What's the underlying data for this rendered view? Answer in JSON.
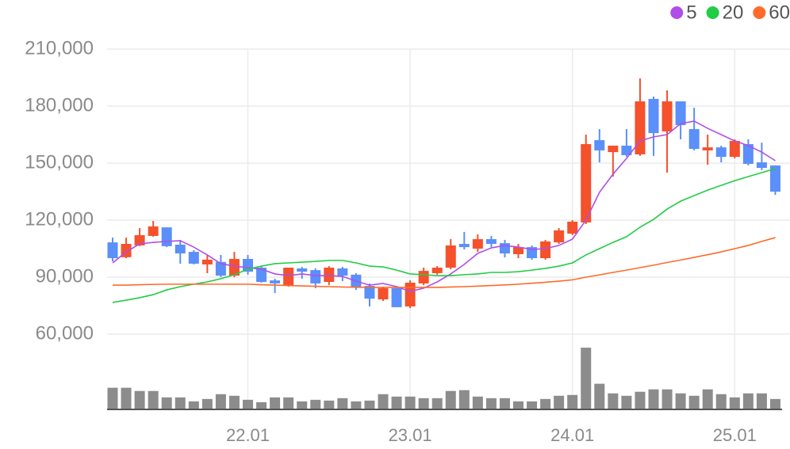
{
  "chart_data": {
    "type": "candlestick",
    "categories": [
      null,
      null,
      null,
      null,
      null,
      null,
      null,
      null,
      null,
      null,
      "22.01",
      null,
      null,
      null,
      null,
      null,
      null,
      null,
      null,
      null,
      null,
      null,
      "23.01",
      null,
      null,
      null,
      null,
      null,
      null,
      null,
      null,
      null,
      null,
      null,
      "24.01",
      null,
      null,
      null,
      null,
      null,
      null,
      null,
      null,
      null,
      null,
      null,
      "25.01",
      null,
      null,
      null
    ],
    "open": [
      108300,
      100500,
      106700,
      111700,
      116200,
      107100,
      103300,
      96700,
      98000,
      90800,
      99600,
      95000,
      88300,
      85800,
      94600,
      93700,
      87500,
      94600,
      91300,
      85400,
      78300,
      84200,
      74600,
      86700,
      92100,
      95000,
      107500,
      105000,
      110000,
      107900,
      102100,
      105800,
      100000,
      108300,
      112900,
      118800,
      162100,
      155800,
      159200,
      154600,
      183800,
      166700,
      182500,
      167900,
      156700,
      158300,
      153300,
      160000,
      150400,
      148800
    ],
    "high": [
      110800,
      110800,
      115800,
      119600,
      116200,
      109600,
      104200,
      101700,
      101700,
      103300,
      101700,
      95800,
      89200,
      95000,
      95400,
      94600,
      95800,
      95400,
      92100,
      86700,
      85000,
      84600,
      88300,
      95000,
      95800,
      110000,
      113800,
      112500,
      111700,
      109600,
      107500,
      106700,
      109600,
      115800,
      120000,
      165000,
      167900,
      159200,
      167900,
      194600,
      185000,
      188300,
      182500,
      179200,
      165000,
      159200,
      162500,
      162500,
      160800,
      148800
    ],
    "low": [
      98300,
      100000,
      106300,
      111300,
      105800,
      97100,
      96700,
      92100,
      90000,
      90000,
      91300,
      87100,
      81700,
      85000,
      89200,
      84200,
      85800,
      87900,
      83300,
      74600,
      77500,
      74200,
      73700,
      85800,
      91300,
      94200,
      104600,
      103300,
      105800,
      100400,
      100000,
      99200,
      99200,
      107500,
      112100,
      117900,
      150400,
      142900,
      153300,
      153800,
      153800,
      145000,
      162500,
      156700,
      149200,
      150400,
      152500,
      148800,
      146300,
      133300
    ],
    "close": [
      100000,
      107500,
      112100,
      116700,
      106300,
      102500,
      97100,
      99200,
      90800,
      99600,
      92900,
      87500,
      86700,
      95000,
      92900,
      86700,
      95000,
      90800,
      84600,
      78700,
      84200,
      74200,
      87100,
      93300,
      95000,
      106700,
      105800,
      110000,
      107500,
      102500,
      105800,
      100000,
      108800,
      114600,
      119200,
      160000,
      156700,
      159200,
      154200,
      182500,
      165800,
      182500,
      170000,
      157500,
      158300,
      153300,
      161700,
      149600,
      147500,
      135000
    ],
    "up_color": "#f4512c",
    "down_color": "#5b8ff9",
    "series": [
      {
        "name": "5",
        "color": "#b04ee8",
        "values": [
          97500,
          103300,
          107500,
          108300,
          108800,
          109200,
          105800,
          101700,
          97100,
          95800,
          95000,
          94200,
          91700,
          90800,
          91700,
          90800,
          90800,
          90400,
          87900,
          85800,
          86700,
          85000,
          82500,
          84200,
          87500,
          91700,
          96700,
          102500,
          105400,
          106700,
          105800,
          104600,
          105000,
          106700,
          110000,
          120000,
          134600,
          144200,
          152500,
          161700,
          163800,
          165000,
          170800,
          172100,
          168300,
          165000,
          161700,
          159200,
          155800,
          151300
        ]
      },
      {
        "name": "20",
        "color": "#22cc44",
        "values": [
          76700,
          77900,
          79200,
          80800,
          83300,
          85000,
          86300,
          87500,
          89200,
          91300,
          94200,
          95800,
          97100,
          97500,
          97900,
          98300,
          98800,
          98800,
          97500,
          95800,
          95400,
          93700,
          91700,
          91300,
          90800,
          90800,
          91300,
          91700,
          92500,
          92500,
          92900,
          93700,
          94600,
          95800,
          97500,
          101700,
          105000,
          108300,
          111300,
          116300,
          120400,
          125800,
          130000,
          132900,
          135800,
          138300,
          140800,
          142900,
          145000,
          147100
        ]
      },
      {
        "name": "60",
        "color": "#ff6a2a",
        "values": [
          85800,
          85800,
          86000,
          86200,
          86300,
          86300,
          86300,
          86300,
          86300,
          86300,
          86300,
          86000,
          85800,
          85600,
          85400,
          85200,
          85000,
          84800,
          84700,
          84600,
          84600,
          84600,
          84600,
          84600,
          84600,
          84800,
          85000,
          85300,
          85600,
          85900,
          86300,
          86800,
          87300,
          87900,
          88600,
          90000,
          91200,
          92500,
          93700,
          95000,
          96300,
          97700,
          99000,
          100400,
          101800,
          103300,
          105000,
          106700,
          108800,
          110800
        ]
      }
    ],
    "volume": {
      "color": "#8c8c8c",
      "ylim": [
        0,
        80
      ],
      "values": [
        27,
        27,
        23,
        23,
        15,
        15,
        10,
        13,
        19,
        17,
        12,
        9,
        15,
        15,
        10,
        12,
        11,
        14,
        10,
        11,
        19,
        16,
        16,
        14,
        14,
        23,
        24,
        16,
        14,
        14,
        10,
        10,
        13,
        17,
        18,
        77,
        32,
        20,
        17,
        22,
        25,
        25,
        20,
        17,
        25,
        19,
        15,
        20,
        20,
        13
      ]
    },
    "ylim": [
      60000,
      210000
    ],
    "yticks": [
      {
        "value": 60000,
        "label": "60,000"
      },
      {
        "value": 90000,
        "label": "90,000"
      },
      {
        "value": 120000,
        "label": "120,000"
      },
      {
        "value": 150000,
        "label": "150,000"
      },
      {
        "value": 180000,
        "label": "180,000"
      },
      {
        "value": 210000,
        "label": "210,000"
      }
    ],
    "grid": true,
    "legend": "top-right"
  }
}
